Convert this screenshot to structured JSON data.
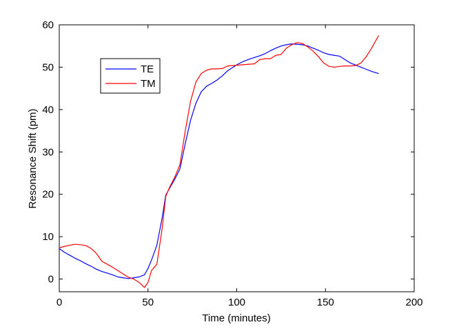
{
  "chart_data": {
    "type": "line",
    "title": "",
    "xlabel": "Time (minutes)",
    "ylabel": "Resonance Shift (pm)",
    "xlim": [
      0,
      200
    ],
    "ylim": [
      -3,
      60
    ],
    "xticks": [
      0,
      50,
      100,
      150,
      200
    ],
    "yticks": [
      0,
      10,
      20,
      30,
      40,
      50,
      60
    ],
    "grid": false,
    "legend_position": "top-left",
    "series": [
      {
        "name": "TE",
        "color": "#0000ff",
        "x": [
          0,
          3,
          6,
          9,
          12,
          15,
          18,
          21,
          24,
          27,
          30,
          33,
          36,
          39,
          42,
          45,
          48,
          50,
          52,
          55,
          58,
          60,
          62,
          65,
          68,
          71,
          74,
          77,
          80,
          83,
          86,
          89,
          92,
          95,
          98,
          101,
          104,
          107,
          110,
          113,
          116,
          119,
          122,
          125,
          128,
          131,
          134,
          137,
          140,
          143,
          146,
          149,
          152,
          155,
          158,
          161,
          164,
          167,
          170,
          173,
          176,
          180
        ],
        "y": [
          7.2,
          6.3,
          5.6,
          4.9,
          4.3,
          3.6,
          3.0,
          2.3,
          1.8,
          1.4,
          1.0,
          0.5,
          0.3,
          0.1,
          0.3,
          0.5,
          1.0,
          2.5,
          4.5,
          8.0,
          14.5,
          19.8,
          21.3,
          23.5,
          26.0,
          32.0,
          37.5,
          41.5,
          44.2,
          45.5,
          46.2,
          47.0,
          48.0,
          49.2,
          50.0,
          50.8,
          51.4,
          51.9,
          52.3,
          52.7,
          53.2,
          53.9,
          54.5,
          55.0,
          55.3,
          55.5,
          55.4,
          55.3,
          55.0,
          54.5,
          54.0,
          53.4,
          53.0,
          52.8,
          52.6,
          51.8,
          51.0,
          50.5,
          50.0,
          49.5,
          49.0,
          48.5
        ]
      },
      {
        "name": "TM",
        "color": "#ff0000",
        "x": [
          0,
          3,
          6,
          9,
          12,
          15,
          18,
          21,
          24,
          27,
          30,
          33,
          36,
          39,
          42,
          45,
          48,
          50,
          52,
          55,
          58,
          60,
          62,
          65,
          68,
          71,
          74,
          77,
          80,
          83,
          86,
          89,
          92,
          95,
          98,
          101,
          104,
          107,
          110,
          113,
          116,
          119,
          122,
          125,
          128,
          131,
          134,
          137,
          140,
          143,
          146,
          149,
          152,
          155,
          158,
          161,
          164,
          167,
          170,
          173,
          176,
          180
        ],
        "y": [
          7.4,
          7.7,
          8.0,
          8.2,
          8.1,
          7.9,
          7.2,
          6.0,
          4.2,
          3.5,
          2.8,
          2.0,
          1.2,
          0.4,
          0.0,
          -0.8,
          -2.0,
          -0.8,
          2.0,
          3.5,
          12.0,
          19.5,
          21.5,
          24.0,
          27.0,
          35.0,
          42.0,
          46.5,
          48.5,
          49.3,
          49.6,
          49.6,
          49.7,
          50.3,
          50.4,
          50.5,
          50.6,
          50.7,
          50.8,
          51.8,
          52.0,
          52.0,
          52.8,
          53.0,
          54.5,
          55.3,
          55.8,
          55.6,
          54.8,
          53.8,
          52.5,
          51.0,
          50.2,
          50.0,
          50.2,
          50.3,
          50.3,
          50.4,
          51.0,
          52.5,
          54.5,
          57.5
        ]
      }
    ]
  }
}
